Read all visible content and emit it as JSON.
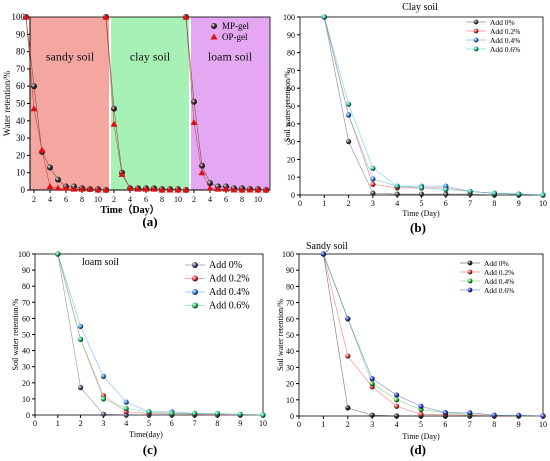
{
  "chart_data": [
    {
      "panel": "(a)",
      "type": "scatter",
      "title": "",
      "xlabel": "Time（Day）",
      "ylabel": "Water retention/%",
      "ylim": [
        0,
        100
      ],
      "y_ticks": [
        0,
        10,
        20,
        30,
        40,
        50,
        60,
        70,
        80,
        90,
        100
      ],
      "x_ticks": [
        2,
        4,
        6,
        8,
        10
      ],
      "legend": "top-right",
      "segments": [
        {
          "label": "sandy soil",
          "color": "#f4a6a1"
        },
        {
          "label": "clay soil",
          "color": "#a8f1b6"
        },
        {
          "label": "loam soil",
          "color": "#e3a8f1"
        }
      ],
      "series": [
        {
          "name": "MP-gel",
          "color": "#333333",
          "marker": "sphere",
          "segments": [
            {
              "x": [
                1,
                2,
                3,
                4,
                5,
                6,
                7,
                8,
                9,
                10,
                11
              ],
              "y": [
                100,
                60,
                22,
                13,
                6,
                2,
                2,
                1,
                0.5,
                0.5,
                0
              ]
            },
            {
              "x": [
                1,
                2,
                3,
                4,
                5,
                6,
                7,
                8,
                9,
                10,
                11
              ],
              "y": [
                100,
                47,
                10,
                1,
                1,
                1,
                1,
                0.5,
                0.5,
                0.5,
                0
              ]
            },
            {
              "x": [
                1,
                2,
                3,
                4,
                5,
                6,
                7,
                8,
                9,
                10,
                11
              ],
              "y": [
                100,
                51,
                14,
                4,
                2,
                2,
                1,
                1,
                0.5,
                0.5,
                0
              ]
            }
          ]
        },
        {
          "name": "OP-gel",
          "color": "#e01010",
          "marker": "triangle",
          "segments": [
            {
              "x": [
                1,
                2,
                3,
                4,
                5,
                6,
                7,
                8,
                9,
                10,
                11
              ],
              "y": [
                100,
                47,
                23,
                2,
                1,
                1,
                0.5,
                0.5,
                0.5,
                0,
                0
              ]
            },
            {
              "x": [
                1,
                2,
                3,
                4,
                5,
                6,
                7,
                8,
                9,
                10,
                11
              ],
              "y": [
                100,
                38,
                9,
                1,
                0.5,
                0.5,
                0.5,
                0,
                0,
                0,
                0
              ]
            },
            {
              "x": [
                1,
                2,
                3,
                4,
                5,
                6,
                7,
                8,
                9,
                10,
                11
              ],
              "y": [
                100,
                39,
                10,
                1,
                0.5,
                0.5,
                0,
                0,
                0,
                0,
                0
              ]
            }
          ]
        }
      ]
    },
    {
      "panel": "(b)",
      "type": "line",
      "title": "Clay soil",
      "xlabel": "Time (Day)",
      "ylabel": "Soil water retention/%",
      "xlim": [
        0,
        10
      ],
      "ylim": [
        0,
        100
      ],
      "x_ticks": [
        0,
        1,
        2,
        3,
        4,
        5,
        6,
        7,
        8,
        9,
        10
      ],
      "y_ticks": [
        0,
        10,
        20,
        30,
        40,
        50,
        60,
        70,
        80,
        90,
        100
      ],
      "legend": "top-right",
      "x": [
        1,
        2,
        3,
        4,
        5,
        6,
        7,
        8,
        9,
        10
      ],
      "series": [
        {
          "name": "Add 0%",
          "color": "#444444",
          "values": [
            100,
            30,
            1,
            0.5,
            0.5,
            0.5,
            0.5,
            0,
            0,
            0
          ]
        },
        {
          "name": "Add 0.2%",
          "color": "#f03c3c",
          "values": [
            100,
            45,
            6,
            4,
            4,
            4,
            2,
            1,
            0.5,
            0
          ]
        },
        {
          "name": "Add 0.4%",
          "color": "#3c8ff0",
          "values": [
            100,
            45,
            9,
            5,
            5,
            5,
            2,
            1,
            0.5,
            0
          ]
        },
        {
          "name": "Add 0.6%",
          "color": "#2ec7a8",
          "values": [
            100,
            51,
            15,
            5,
            4,
            3,
            2,
            1,
            0.5,
            0
          ]
        }
      ]
    },
    {
      "panel": "(c)",
      "type": "line",
      "title": "loam soil",
      "xlabel": "Time(day)",
      "ylabel": "Soil water retention/%",
      "xlim": [
        0,
        10
      ],
      "ylim": [
        0,
        100
      ],
      "x_ticks": [
        0,
        1,
        2,
        3,
        4,
        5,
        6,
        7,
        8,
        9,
        10
      ],
      "y_ticks": [
        0,
        10,
        20,
        30,
        40,
        50,
        60,
        70,
        80,
        90,
        100
      ],
      "legend": "top-right",
      "x": [
        1,
        2,
        3,
        4,
        5,
        6,
        7,
        8,
        9,
        10
      ],
      "series": [
        {
          "name": "Add 0%",
          "color": "#555577",
          "values": [
            100,
            17,
            0.5,
            0,
            0,
            0,
            0,
            0,
            0,
            0
          ]
        },
        {
          "name": "Add 0.2%",
          "color": "#f03c3c",
          "values": [
            100,
            47,
            12,
            2,
            1,
            1,
            0.5,
            0,
            0,
            0
          ]
        },
        {
          "name": "Add 0.4%",
          "color": "#3c8ff0",
          "values": [
            100,
            55,
            24,
            8,
            2,
            2,
            1,
            0.5,
            0,
            0
          ]
        },
        {
          "name": "Add 0.6%",
          "color": "#2ecf7a",
          "values": [
            100,
            47,
            10,
            4,
            2,
            1,
            1,
            1,
            0.5,
            0
          ]
        }
      ]
    },
    {
      "panel": "(d)",
      "type": "line",
      "title": "Sandy soil",
      "xlabel": "Time (Day)",
      "ylabel": "Soil water retention/%",
      "xlim": [
        0,
        10
      ],
      "ylim": [
        0,
        100
      ],
      "x_ticks": [
        0,
        1,
        2,
        3,
        4,
        5,
        6,
        7,
        8,
        9,
        10
      ],
      "y_ticks": [
        0,
        10,
        20,
        30,
        40,
        50,
        60,
        70,
        80,
        90,
        100
      ],
      "legend": "top-right",
      "x": [
        1,
        2,
        3,
        4,
        5,
        6,
        7,
        8,
        9,
        10
      ],
      "series": [
        {
          "name": "Add 0%",
          "color": "#222222",
          "values": [
            100,
            5,
            0.5,
            0,
            0,
            0,
            0,
            0,
            0,
            0
          ]
        },
        {
          "name": "Add 0.2%",
          "color": "#f03c3c",
          "values": [
            100,
            37,
            18,
            6,
            1,
            1,
            0.5,
            0,
            0,
            0
          ]
        },
        {
          "name": "Add 0.4%",
          "color": "#3ccc3c",
          "values": [
            100,
            60,
            20,
            10,
            4,
            2,
            1,
            0.5,
            0,
            0
          ]
        },
        {
          "name": "Add 0.6%",
          "color": "#2f3fd6",
          "values": [
            100,
            60,
            23,
            13,
            6,
            2,
            2,
            0.5,
            0.5,
            0
          ]
        }
      ]
    }
  ]
}
